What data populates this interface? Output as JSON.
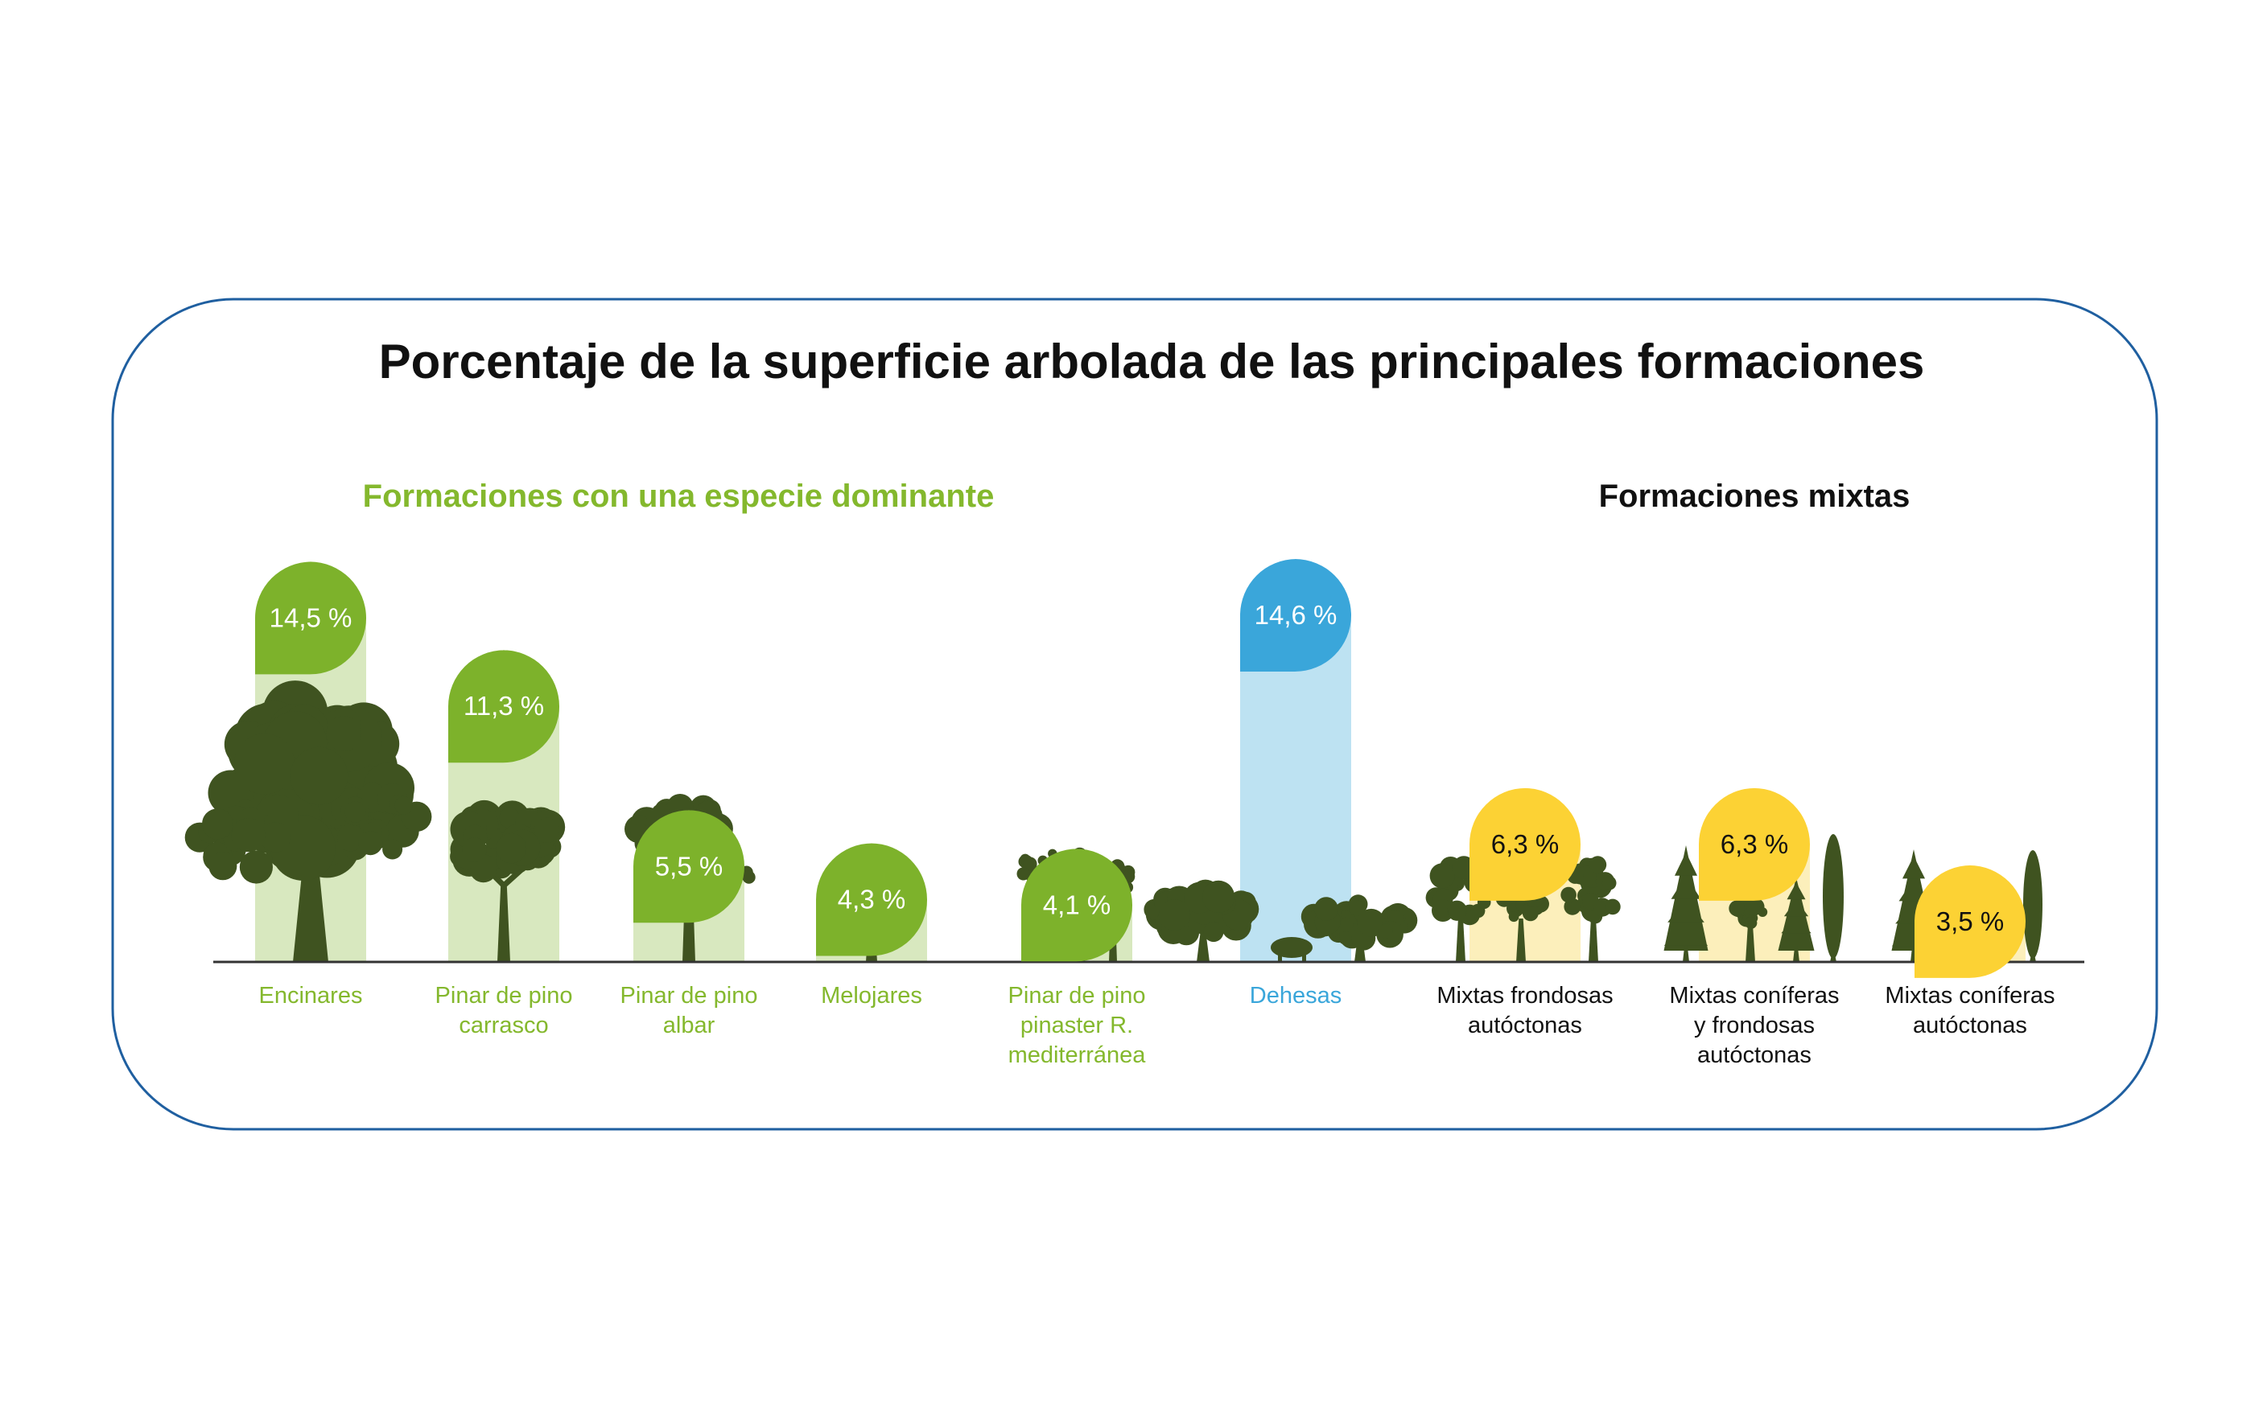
{
  "chart_data": {
    "type": "bar",
    "title": "Porcentaje de la superficie arbolada de las principales formaciones",
    "unit": "%",
    "groups": [
      {
        "name": "Formaciones con una especie dominante",
        "color": "#84b82d"
      },
      {
        "name": "Formaciones mixtas",
        "color": "#111111"
      }
    ],
    "categories": [
      {
        "label": [
          "Encinares"
        ],
        "value": 14.5,
        "display": "14,5 %",
        "group": 0,
        "bar": "#d8e8bf",
        "badge": "#7db22b",
        "badge_text": "#ffffff",
        "label_color": "#84b82d",
        "tree": "oak"
      },
      {
        "label": [
          "Pinar de pino",
          "carrasco"
        ],
        "value": 11.3,
        "display": "11,3 %",
        "group": 0,
        "bar": "#d8e8bf",
        "badge": "#7db22b",
        "badge_text": "#ffffff",
        "label_color": "#84b82d",
        "tree": "umbrella"
      },
      {
        "label": [
          "Pinar de pino",
          "albar"
        ],
        "value": 5.5,
        "display": "5,5 %",
        "group": 0,
        "bar": "#d8e8bf",
        "badge": "#7db22b",
        "badge_text": "#ffffff",
        "label_color": "#84b82d",
        "tree": "pine"
      },
      {
        "label": [
          "Melojares"
        ],
        "value": 4.3,
        "display": "4,3 %",
        "group": 0,
        "bar": "#d8e8bf",
        "badge": "#7db22b",
        "badge_text": "#ffffff",
        "label_color": "#84b82d",
        "tree": "rounded"
      },
      {
        "label": [
          "Pinar de pino",
          "pinaster R.",
          "mediterránea"
        ],
        "value": 4.1,
        "display": "4,1 %",
        "group": 0,
        "bar": "#d8e8bf",
        "badge": "#7db22b",
        "badge_text": "#ffffff",
        "label_color": "#84b82d",
        "tree": "pinegroup"
      },
      {
        "label": [
          "Dehesas"
        ],
        "value": 14.6,
        "display": "14,6 %",
        "group": 0,
        "bar": "#bde2f2",
        "badge": "#3aa6da",
        "badge_text": "#ffffff",
        "label_color": "#3aa6da",
        "tree": "dehesa"
      },
      {
        "label": [
          "Mixtas frondosas",
          "autóctonas"
        ],
        "value": 6.3,
        "display": "6,3 %",
        "group": 1,
        "bar": "#fcefbb",
        "badge": "#fcd234",
        "badge_text": "#111111",
        "label_color": "#111111",
        "tree": "broadleaf"
      },
      {
        "label": [
          "Mixtas coníferas",
          "y frondosas",
          "autóctonas"
        ],
        "value": 6.3,
        "display": "6,3 %",
        "group": 1,
        "bar": "#fcefbb",
        "badge": "#fcd234",
        "badge_text": "#111111",
        "label_color": "#111111",
        "tree": "mixed"
      },
      {
        "label": [
          "Mixtas coníferas",
          "autóctonas"
        ],
        "value": 3.5,
        "display": "3,5 %",
        "group": 1,
        "bar": "#fcefbb",
        "badge": "#fcd234",
        "badge_text": "#111111",
        "label_color": "#111111",
        "tree": "conifers"
      }
    ],
    "colors": {
      "frame": "#1f5fa0",
      "baseline": "#333333",
      "tree": "#3f5320"
    }
  }
}
